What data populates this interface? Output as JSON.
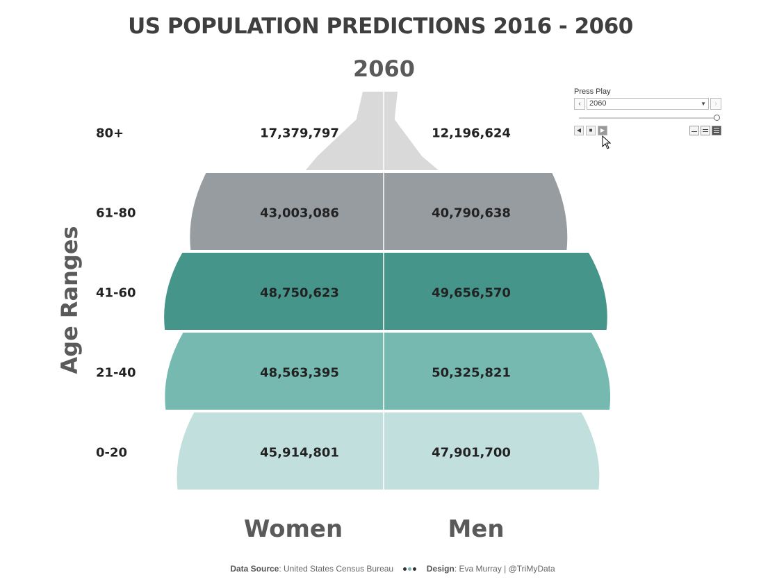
{
  "title": "US POPULATION PREDICTIONS 2016 - 2060",
  "year": "2060",
  "y_axis_label": "Age Ranges",
  "playback": {
    "label": "Press Play",
    "selected_year": "2060",
    "slider_value": 1.0,
    "prev_icon": "chevron-left-icon",
    "next_icon": "chevron-right-icon",
    "speed_selected": "fast"
  },
  "chart_data": {
    "type": "bar",
    "categories": [
      "80+",
      "61-80",
      "41-60",
      "21-40",
      "0-20"
    ],
    "series": [
      {
        "name": "Women",
        "values": [
          17379797,
          43003086,
          48750623,
          48563395,
          45914801
        ],
        "labels": [
          "17,379,797",
          "43,003,086",
          "48,750,623",
          "48,563,395",
          "45,914,801"
        ]
      },
      {
        "name": "Men",
        "values": [
          12196624,
          40790638,
          49656570,
          50325821,
          47901700
        ],
        "labels": [
          "12,196,624",
          "40,790,638",
          "49,656,570",
          "50,325,821",
          "47,901,700"
        ]
      }
    ],
    "colors": [
      "#d9d9d9",
      "#979ca1",
      "#45958a",
      "#75b9b1",
      "#c1dfdc"
    ],
    "xlabel": "",
    "ylabel": "Age Ranges"
  },
  "footer": {
    "source_label": "Data Source",
    "source_text": ": United States Census Bureau",
    "design_label": "Design",
    "design_text": ": Eva Murray | @TriMyData",
    "dot_colors": [
      "#333333",
      "#75b9b1",
      "#333333"
    ]
  }
}
